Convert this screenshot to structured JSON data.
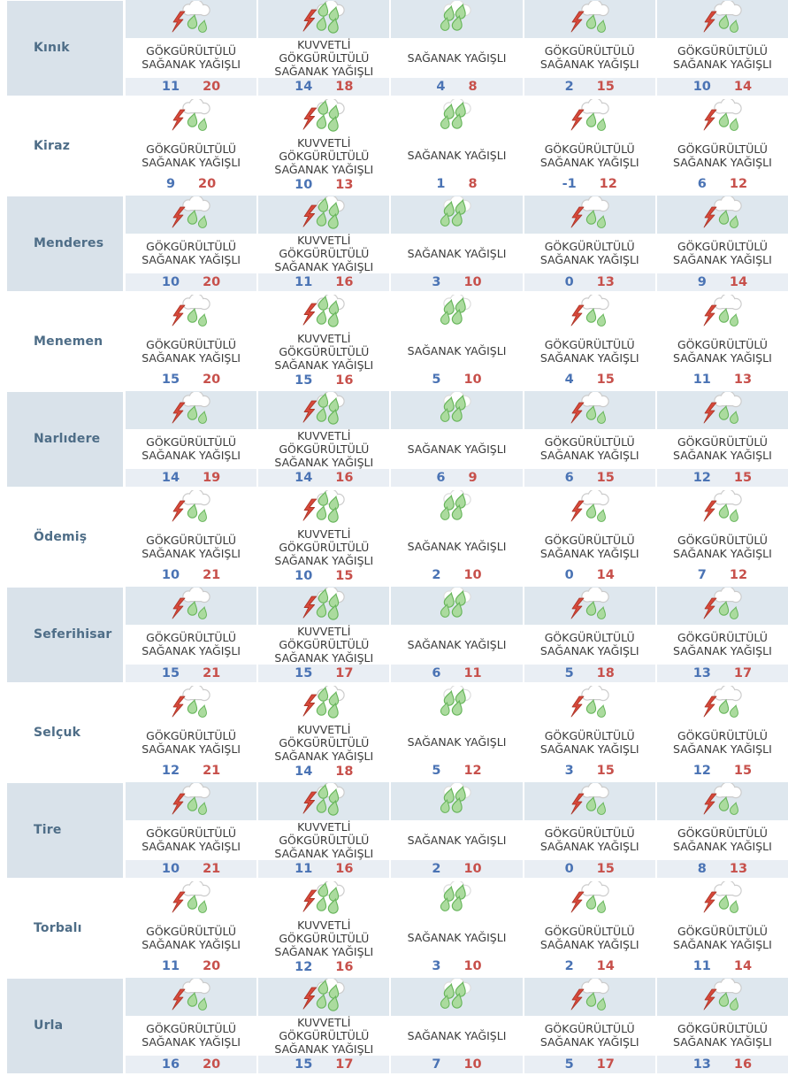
{
  "colors": {
    "min_temp": "#4a73b4",
    "max_temp": "#c7504b",
    "district_text": "#4e6d87",
    "row_shade": "#dee7ee",
    "temp_band_shade": "#e9eef4",
    "district_shade": "#d9e2ea",
    "drop_green": "#abdb9e",
    "drop_green_outline": "#67b55b",
    "lightning_red": "#d6483a"
  },
  "rows": [
    {
      "district": "Kınık",
      "days": [
        {
          "icon": "thunderstorm-icon",
          "condition": "GÖKGÜRÜLTÜLÜ SAĞANAK YAĞIŞLI",
          "min": 11,
          "max": 20
        },
        {
          "icon": "heavy-thunderstorm-icon",
          "condition": "KUVVETLİ GÖKGÜRÜLTÜLÜ SAĞANAK YAĞIŞLI",
          "min": 14,
          "max": 18
        },
        {
          "icon": "rain-icon",
          "condition": "SAĞANAK YAĞIŞLI",
          "min": 4,
          "max": 8
        },
        {
          "icon": "thunderstorm-icon",
          "condition": "GÖKGÜRÜLTÜLÜ SAĞANAK YAĞIŞLI",
          "min": 2,
          "max": 15
        },
        {
          "icon": "thunderstorm-icon",
          "condition": "GÖKGÜRÜLTÜLÜ SAĞANAK YAĞIŞLI",
          "min": 10,
          "max": 14
        }
      ]
    },
    {
      "district": "Kiraz",
      "days": [
        {
          "icon": "thunderstorm-icon",
          "condition": "GÖKGÜRÜLTÜLÜ SAĞANAK YAĞIŞLI",
          "min": 9,
          "max": 20
        },
        {
          "icon": "heavy-thunderstorm-icon",
          "condition": "KUVVETLİ GÖKGÜRÜLTÜLÜ SAĞANAK YAĞIŞLI",
          "min": 10,
          "max": 13
        },
        {
          "icon": "rain-icon",
          "condition": "SAĞANAK YAĞIŞLI",
          "min": 1,
          "max": 8
        },
        {
          "icon": "thunderstorm-icon",
          "condition": "GÖKGÜRÜLTÜLÜ SAĞANAK YAĞIŞLI",
          "min": -1,
          "max": 12
        },
        {
          "icon": "thunderstorm-icon",
          "condition": "GÖKGÜRÜLTÜLÜ SAĞANAK YAĞIŞLI",
          "min": 6,
          "max": 12
        }
      ]
    },
    {
      "district": "Menderes",
      "days": [
        {
          "icon": "thunderstorm-icon",
          "condition": "GÖKGÜRÜLTÜLÜ SAĞANAK YAĞIŞLI",
          "min": 10,
          "max": 20
        },
        {
          "icon": "heavy-thunderstorm-icon",
          "condition": "KUVVETLİ GÖKGÜRÜLTÜLÜ SAĞANAK YAĞIŞLI",
          "min": 11,
          "max": 16
        },
        {
          "icon": "rain-icon",
          "condition": "SAĞANAK YAĞIŞLI",
          "min": 3,
          "max": 10
        },
        {
          "icon": "thunderstorm-icon",
          "condition": "GÖKGÜRÜLTÜLÜ SAĞANAK YAĞIŞLI",
          "min": 0,
          "max": 13
        },
        {
          "icon": "thunderstorm-icon",
          "condition": "GÖKGÜRÜLTÜLÜ SAĞANAK YAĞIŞLI",
          "min": 9,
          "max": 14
        }
      ]
    },
    {
      "district": "Menemen",
      "days": [
        {
          "icon": "thunderstorm-icon",
          "condition": "GÖKGÜRÜLTÜLÜ SAĞANAK YAĞIŞLI",
          "min": 15,
          "max": 20
        },
        {
          "icon": "heavy-thunderstorm-icon",
          "condition": "KUVVETLİ GÖKGÜRÜLTÜLÜ SAĞANAK YAĞIŞLI",
          "min": 15,
          "max": 16
        },
        {
          "icon": "rain-icon",
          "condition": "SAĞANAK YAĞIŞLI",
          "min": 5,
          "max": 10
        },
        {
          "icon": "thunderstorm-icon",
          "condition": "GÖKGÜRÜLTÜLÜ SAĞANAK YAĞIŞLI",
          "min": 4,
          "max": 15
        },
        {
          "icon": "thunderstorm-icon",
          "condition": "GÖKGÜRÜLTÜLÜ SAĞANAK YAĞIŞLI",
          "min": 11,
          "max": 13
        }
      ]
    },
    {
      "district": "Narlıdere",
      "days": [
        {
          "icon": "thunderstorm-icon",
          "condition": "GÖKGÜRÜLTÜLÜ SAĞANAK YAĞIŞLI",
          "min": 14,
          "max": 19
        },
        {
          "icon": "heavy-thunderstorm-icon",
          "condition": "KUVVETLİ GÖKGÜRÜLTÜLÜ SAĞANAK YAĞIŞLI",
          "min": 14,
          "max": 16
        },
        {
          "icon": "rain-icon",
          "condition": "SAĞANAK YAĞIŞLI",
          "min": 6,
          "max": 9
        },
        {
          "icon": "thunderstorm-icon",
          "condition": "GÖKGÜRÜLTÜLÜ SAĞANAK YAĞIŞLI",
          "min": 6,
          "max": 15
        },
        {
          "icon": "thunderstorm-icon",
          "condition": "GÖKGÜRÜLTÜLÜ SAĞANAK YAĞIŞLI",
          "min": 12,
          "max": 15
        }
      ]
    },
    {
      "district": "Ödemiş",
      "days": [
        {
          "icon": "thunderstorm-icon",
          "condition": "GÖKGÜRÜLTÜLÜ SAĞANAK YAĞIŞLI",
          "min": 10,
          "max": 21
        },
        {
          "icon": "heavy-thunderstorm-icon",
          "condition": "KUVVETLİ GÖKGÜRÜLTÜLÜ SAĞANAK YAĞIŞLI",
          "min": 10,
          "max": 15
        },
        {
          "icon": "rain-icon",
          "condition": "SAĞANAK YAĞIŞLI",
          "min": 2,
          "max": 10
        },
        {
          "icon": "thunderstorm-icon",
          "condition": "GÖKGÜRÜLTÜLÜ SAĞANAK YAĞIŞLI",
          "min": 0,
          "max": 14
        },
        {
          "icon": "thunderstorm-icon",
          "condition": "GÖKGÜRÜLTÜLÜ SAĞANAK YAĞIŞLI",
          "min": 7,
          "max": 12
        }
      ]
    },
    {
      "district": "Seferihisar",
      "days": [
        {
          "icon": "thunderstorm-icon",
          "condition": "GÖKGÜRÜLTÜLÜ SAĞANAK YAĞIŞLI",
          "min": 15,
          "max": 21
        },
        {
          "icon": "heavy-thunderstorm-icon",
          "condition": "KUVVETLİ GÖKGÜRÜLTÜLÜ SAĞANAK YAĞIŞLI",
          "min": 15,
          "max": 17
        },
        {
          "icon": "rain-icon",
          "condition": "SAĞANAK YAĞIŞLI",
          "min": 6,
          "max": 11
        },
        {
          "icon": "thunderstorm-icon",
          "condition": "GÖKGÜRÜLTÜLÜ SAĞANAK YAĞIŞLI",
          "min": 5,
          "max": 18
        },
        {
          "icon": "thunderstorm-icon",
          "condition": "GÖKGÜRÜLTÜLÜ SAĞANAK YAĞIŞLI",
          "min": 13,
          "max": 17
        }
      ]
    },
    {
      "district": "Selçuk",
      "days": [
        {
          "icon": "thunderstorm-icon",
          "condition": "GÖKGÜRÜLTÜLÜ SAĞANAK YAĞIŞLI",
          "min": 12,
          "max": 21
        },
        {
          "icon": "heavy-thunderstorm-icon",
          "condition": "KUVVETLİ GÖKGÜRÜLTÜLÜ SAĞANAK YAĞIŞLI",
          "min": 14,
          "max": 18
        },
        {
          "icon": "rain-icon",
          "condition": "SAĞANAK YAĞIŞLI",
          "min": 5,
          "max": 12
        },
        {
          "icon": "thunderstorm-icon",
          "condition": "GÖKGÜRÜLTÜLÜ SAĞANAK YAĞIŞLI",
          "min": 3,
          "max": 15
        },
        {
          "icon": "thunderstorm-icon",
          "condition": "GÖKGÜRÜLTÜLÜ SAĞANAK YAĞIŞLI",
          "min": 12,
          "max": 15
        }
      ]
    },
    {
      "district": "Tire",
      "days": [
        {
          "icon": "thunderstorm-icon",
          "condition": "GÖKGÜRÜLTÜLÜ SAĞANAK YAĞIŞLI",
          "min": 10,
          "max": 21
        },
        {
          "icon": "heavy-thunderstorm-icon",
          "condition": "KUVVETLİ GÖKGÜRÜLTÜLÜ SAĞANAK YAĞIŞLI",
          "min": 11,
          "max": 16
        },
        {
          "icon": "rain-icon",
          "condition": "SAĞANAK YAĞIŞLI",
          "min": 2,
          "max": 10
        },
        {
          "icon": "thunderstorm-icon",
          "condition": "GÖKGÜRÜLTÜLÜ SAĞANAK YAĞIŞLI",
          "min": 0,
          "max": 15
        },
        {
          "icon": "thunderstorm-icon",
          "condition": "GÖKGÜRÜLTÜLÜ SAĞANAK YAĞIŞLI",
          "min": 8,
          "max": 13
        }
      ]
    },
    {
      "district": "Torbalı",
      "days": [
        {
          "icon": "thunderstorm-icon",
          "condition": "GÖKGÜRÜLTÜLÜ SAĞANAK YAĞIŞLI",
          "min": 11,
          "max": 20
        },
        {
          "icon": "heavy-thunderstorm-icon",
          "condition": "KUVVETLİ GÖKGÜRÜLTÜLÜ SAĞANAK YAĞIŞLI",
          "min": 12,
          "max": 16
        },
        {
          "icon": "rain-icon",
          "condition": "SAĞANAK YAĞIŞLI",
          "min": 3,
          "max": 10
        },
        {
          "icon": "thunderstorm-icon",
          "condition": "GÖKGÜRÜLTÜLÜ SAĞANAK YAĞIŞLI",
          "min": 2,
          "max": 14
        },
        {
          "icon": "thunderstorm-icon",
          "condition": "GÖKGÜRÜLTÜLÜ SAĞANAK YAĞIŞLI",
          "min": 11,
          "max": 14
        }
      ]
    },
    {
      "district": "Urla",
      "days": [
        {
          "icon": "thunderstorm-icon",
          "condition": "GÖKGÜRÜLTÜLÜ SAĞANAK YAĞIŞLI",
          "min": 16,
          "max": 20
        },
        {
          "icon": "heavy-thunderstorm-icon",
          "condition": "KUVVETLİ GÖKGÜRÜLTÜLÜ SAĞANAK YAĞIŞLI",
          "min": 15,
          "max": 17
        },
        {
          "icon": "rain-icon",
          "condition": "SAĞANAK YAĞIŞLI",
          "min": 7,
          "max": 10
        },
        {
          "icon": "thunderstorm-icon",
          "condition": "GÖKGÜRÜLTÜLÜ SAĞANAK YAĞIŞLI",
          "min": 5,
          "max": 17
        },
        {
          "icon": "thunderstorm-icon",
          "condition": "GÖKGÜRÜLTÜLÜ SAĞANAK YAĞIŞLI",
          "min": 13,
          "max": 16
        }
      ]
    }
  ]
}
